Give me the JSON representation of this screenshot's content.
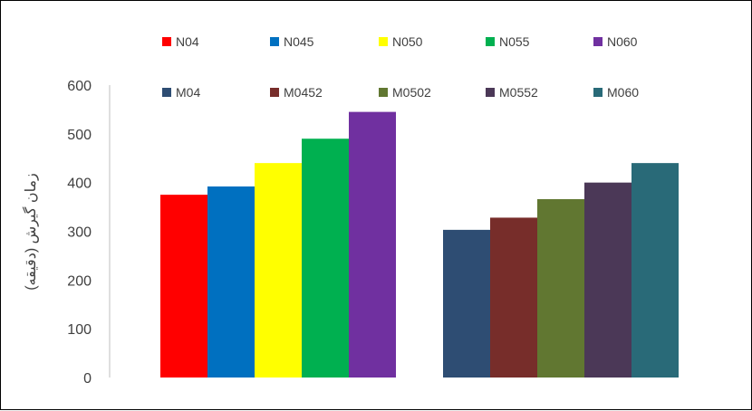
{
  "chart_data": {
    "type": "bar",
    "title": "",
    "xlabel": "",
    "ylabel": "زمان گیرش (دقیقه)",
    "ylim": [
      0,
      600
    ],
    "yticks": [
      0,
      100,
      200,
      300,
      400,
      500,
      600
    ],
    "grid": false,
    "legend_position": "top",
    "groups": [
      {
        "series": [
          {
            "name": "N04",
            "value": 375,
            "color": "#FF0000"
          },
          {
            "name": "N045",
            "value": 392,
            "color": "#0070C0"
          },
          {
            "name": "N050",
            "value": 440,
            "color": "#FFFF00"
          },
          {
            "name": "N055",
            "value": 490,
            "color": "#00B050"
          },
          {
            "name": "N060",
            "value": 545,
            "color": "#7030A0"
          }
        ]
      },
      {
        "series": [
          {
            "name": "M04",
            "value": 303,
            "color": "#2E4D73"
          },
          {
            "name": "M0452",
            "value": 328,
            "color": "#772D2A"
          },
          {
            "name": "M0502",
            "value": 366,
            "color": "#617731"
          },
          {
            "name": "M0552",
            "value": 400,
            "color": "#4B3857"
          },
          {
            "name": "M060",
            "value": 440,
            "color": "#296A78"
          }
        ]
      }
    ]
  }
}
